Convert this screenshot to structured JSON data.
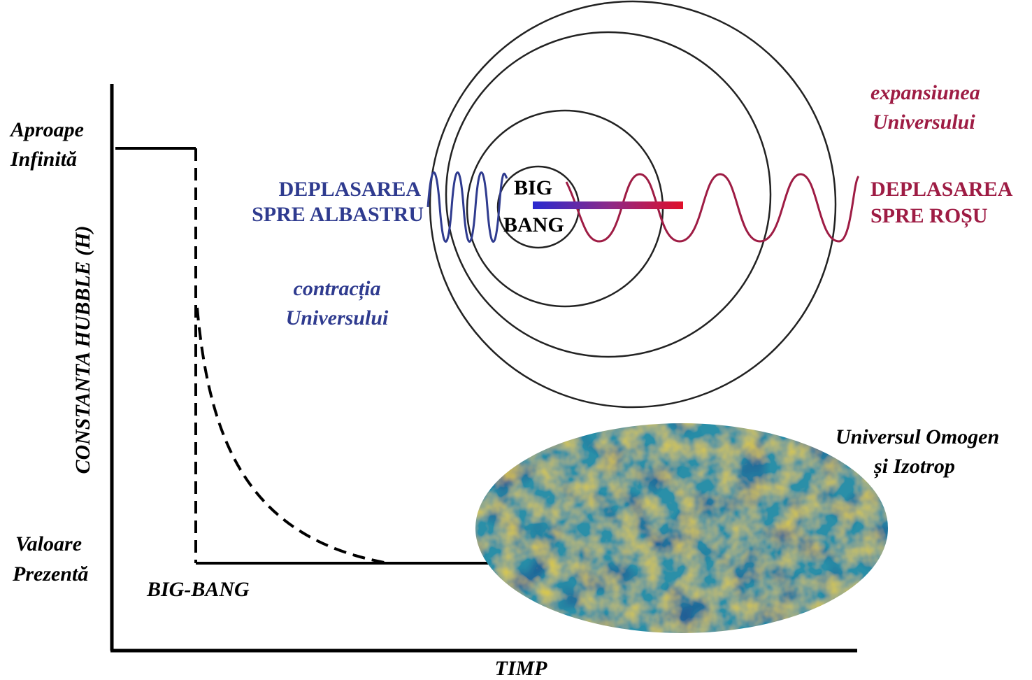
{
  "axes": {
    "y_label": "CONSTANTA HUBBLE (H)",
    "x_label": "TIMP"
  },
  "levels": {
    "top": [
      "Aproape",
      "Infinită"
    ],
    "bottom": [
      "Valoare",
      "Prezentă"
    ]
  },
  "origin_label": "BIG-BANG",
  "blueshift": [
    "DEPLASAREA",
    "SPRE ALBASTRU"
  ],
  "redshift": [
    "DEPLASAREA",
    "SPRE ROȘU"
  ],
  "center": [
    "BIG",
    "BANG"
  ],
  "contraction": [
    "contracția",
    "Universului"
  ],
  "expansion": [
    "expansiunea",
    "Universului"
  ],
  "cmb_caption": [
    "Universul Omogen",
    "și Izotrop"
  ]
}
